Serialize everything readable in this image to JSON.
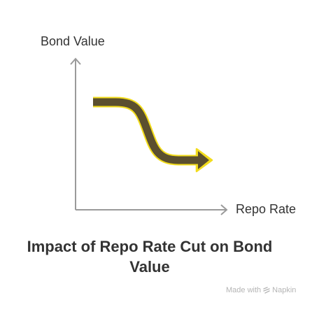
{
  "diagram": {
    "y_axis_label": "Bond Value",
    "x_axis_label": "Repo Rate",
    "title": "Impact of Repo Rate Cut on Bond Value",
    "arrow_direction": "downward-curve",
    "colors": {
      "axis": "#9a9a9a",
      "arrow_fill": "#5b4f2e",
      "arrow_outline": "#f2dc1c",
      "text": "#333333"
    }
  },
  "watermark": {
    "made_with": "Made with",
    "brand": "Napkin",
    "icon": "napkin-icon"
  }
}
